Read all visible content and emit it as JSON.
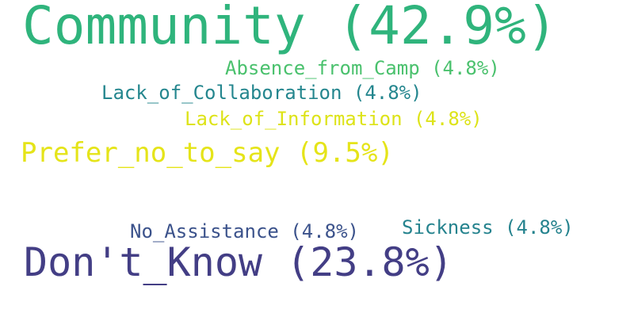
{
  "words": [
    {
      "text": "Community (42.9%)",
      "color": "#2fb47c"
    },
    {
      "text": "Don't_Know (23.8%)",
      "color": "#433e85"
    },
    {
      "text": "Prefer_no_to_say (9.5%)",
      "color": "#e5e419"
    },
    {
      "text": "Absence_from_Camp (4.8%)",
      "color": "#4ac16d"
    },
    {
      "text": "Lack_of_Collaboration (4.8%)",
      "color": "#24868e"
    },
    {
      "text": "Lack_of_Information (4.8%)",
      "color": "#dde318"
    },
    {
      "text": "No_Assistance (4.8%)",
      "color": "#3b528b"
    },
    {
      "text": "Sickness (4.8%)",
      "color": "#25838e"
    }
  ]
}
